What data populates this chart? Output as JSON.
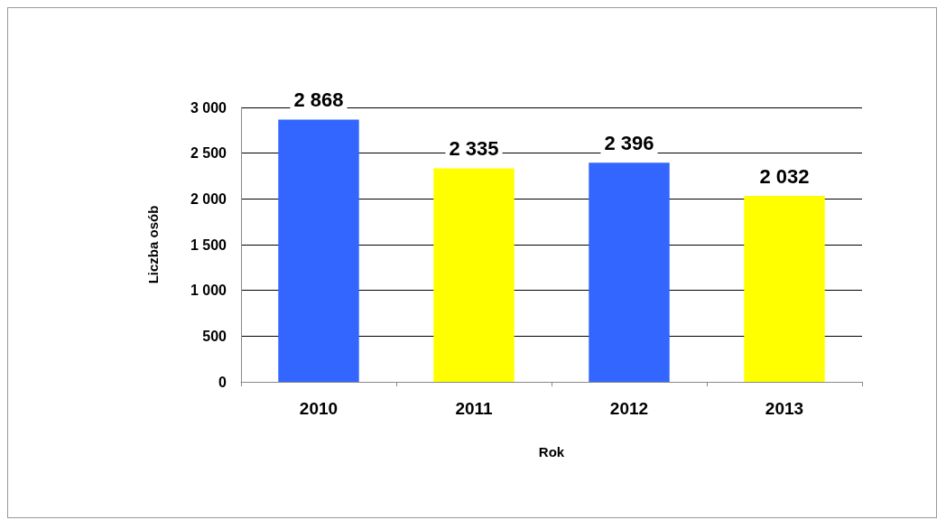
{
  "chart_data": {
    "type": "bar",
    "xlabel": "Rok",
    "ylabel": "Liczba osób",
    "categories": [
      "2010",
      "2011",
      "2012",
      "2013"
    ],
    "values": [
      2868,
      2335,
      2396,
      2032
    ],
    "colors": [
      "#3366ff",
      "#ffff00",
      "#3366ff",
      "#ffff00"
    ],
    "value_labels": [
      "2 868",
      "2 335",
      "2 396",
      "2 032"
    ],
    "ylim": [
      0,
      3000
    ],
    "yticks": [
      {
        "value": 0,
        "label": "0"
      },
      {
        "value": 500,
        "label": "500"
      },
      {
        "value": 1000,
        "label": "1 000"
      },
      {
        "value": 1500,
        "label": "1 500"
      },
      {
        "value": 2000,
        "label": "2 000"
      },
      {
        "value": 2500,
        "label": "2 500"
      },
      {
        "value": 3000,
        "label": "3 000"
      }
    ],
    "grid": "y"
  }
}
